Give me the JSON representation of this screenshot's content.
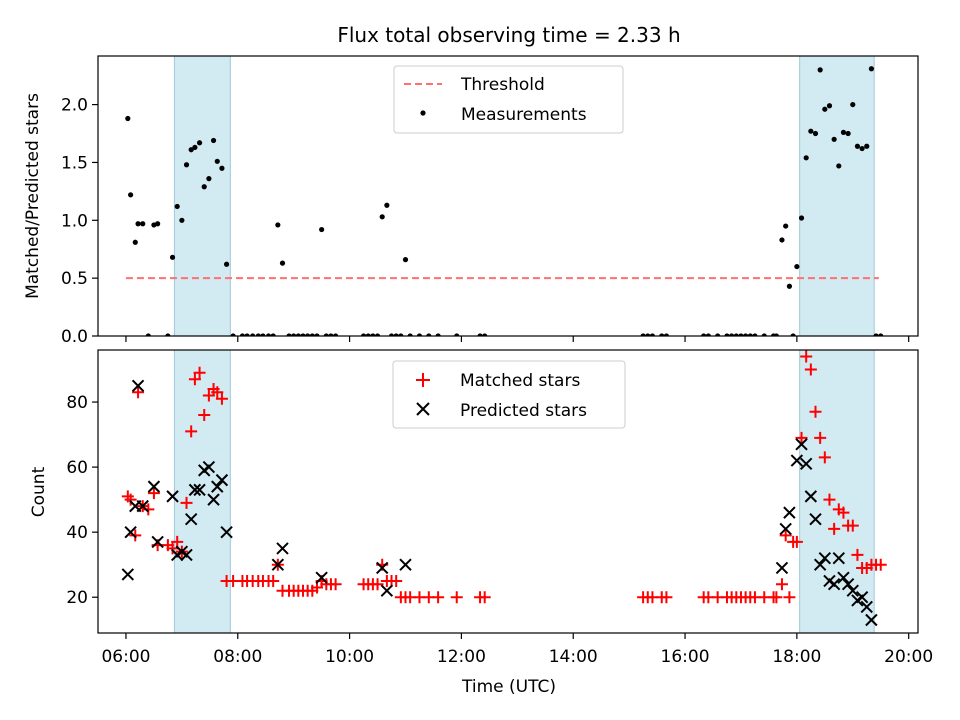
{
  "chart_data": [
    {
      "type": "scatter",
      "title": "Flux total observing time = 2.33 h",
      "ylabel": "Matched/Predicted stars",
      "xlabel": "",
      "xlim": [
        "05:30",
        "20:10"
      ],
      "ylim": [
        0,
        2.42
      ],
      "yticks": [
        "0.0",
        "0.5",
        "1.0",
        "1.5",
        "2.0"
      ],
      "ytick_values": [
        0,
        0.5,
        1.0,
        1.5,
        2.0
      ],
      "grid": false,
      "legend_position": "top-center",
      "colors": {
        "threshold": "#ff7070",
        "measurements": "#000000",
        "shade": "#add8e6"
      },
      "shaded_spans": [
        [
          "06:52",
          "07:52"
        ],
        [
          "18:03",
          "19:23"
        ]
      ],
      "threshold": {
        "name": "Threshold",
        "y": 0.5,
        "x_range": [
          "06:00",
          "19:28"
        ]
      },
      "series": [
        {
          "name": "Measurements",
          "points": [
            [
              "06:02",
              1.88
            ],
            [
              "06:05",
              1.22
            ],
            [
              "06:10",
              0.81
            ],
            [
              "06:13",
              0.97
            ],
            [
              "06:18",
              0.97
            ],
            [
              "06:24",
              0.0
            ],
            [
              "06:30",
              0.96
            ],
            [
              "06:34",
              0.97
            ],
            [
              "06:45",
              0.0
            ],
            [
              "06:50",
              0.68
            ],
            [
              "06:55",
              1.12
            ],
            [
              "07:00",
              1.0
            ],
            [
              "07:05",
              1.48
            ],
            [
              "07:10",
              1.61
            ],
            [
              "07:14",
              1.63
            ],
            [
              "07:19",
              1.67
            ],
            [
              "07:24",
              1.29
            ],
            [
              "07:29",
              1.36
            ],
            [
              "07:34",
              1.69
            ],
            [
              "07:38",
              1.51
            ],
            [
              "07:43",
              1.45
            ],
            [
              "07:48",
              0.62
            ],
            [
              "07:55",
              0.0
            ],
            [
              "08:05",
              0.0
            ],
            [
              "08:10",
              0.0
            ],
            [
              "08:16",
              0.0
            ],
            [
              "08:22",
              0.0
            ],
            [
              "08:27",
              0.0
            ],
            [
              "08:33",
              0.0
            ],
            [
              "08:38",
              0.0
            ],
            [
              "08:43",
              0.96
            ],
            [
              "08:48",
              0.63
            ],
            [
              "08:55",
              0.0
            ],
            [
              "09:00",
              0.0
            ],
            [
              "09:05",
              0.0
            ],
            [
              "09:10",
              0.0
            ],
            [
              "09:15",
              0.0
            ],
            [
              "09:20",
              0.0
            ],
            [
              "09:25",
              0.0
            ],
            [
              "09:30",
              0.92
            ],
            [
              "09:35",
              0.0
            ],
            [
              "09:40",
              0.0
            ],
            [
              "09:45",
              0.0
            ],
            [
              "10:15",
              0.0
            ],
            [
              "10:20",
              0.0
            ],
            [
              "10:25",
              0.0
            ],
            [
              "10:30",
              0.0
            ],
            [
              "10:35",
              1.03
            ],
            [
              "10:40",
              1.13
            ],
            [
              "10:45",
              0.0
            ],
            [
              "10:50",
              0.0
            ],
            [
              "10:55",
              0.0
            ],
            [
              "11:00",
              0.66
            ],
            [
              "11:05",
              0.0
            ],
            [
              "11:15",
              0.0
            ],
            [
              "11:25",
              0.0
            ],
            [
              "11:35",
              0.0
            ],
            [
              "11:55",
              0.0
            ],
            [
              "12:20",
              0.0
            ],
            [
              "12:25",
              0.0
            ],
            [
              "15:15",
              0.0
            ],
            [
              "15:20",
              0.0
            ],
            [
              "15:25",
              0.0
            ],
            [
              "15:35",
              0.0
            ],
            [
              "15:40",
              0.0
            ],
            [
              "16:20",
              0.0
            ],
            [
              "16:25",
              0.0
            ],
            [
              "16:35",
              0.0
            ],
            [
              "16:45",
              0.0
            ],
            [
              "16:50",
              0.0
            ],
            [
              "16:55",
              0.0
            ],
            [
              "17:00",
              0.0
            ],
            [
              "17:05",
              0.0
            ],
            [
              "17:10",
              0.0
            ],
            [
              "17:15",
              0.0
            ],
            [
              "17:25",
              0.0
            ],
            [
              "17:35",
              0.0
            ],
            [
              "17:38",
              0.0
            ],
            [
              "17:44",
              0.83
            ],
            [
              "17:48",
              0.95
            ],
            [
              "17:52",
              0.43
            ],
            [
              "17:56",
              0.0
            ],
            [
              "18:00",
              0.6
            ],
            [
              "18:05",
              1.02
            ],
            [
              "18:10",
              1.54
            ],
            [
              "18:15",
              1.77
            ],
            [
              "18:20",
              1.75
            ],
            [
              "18:25",
              2.3
            ],
            [
              "18:30",
              1.96
            ],
            [
              "18:35",
              1.99
            ],
            [
              "18:40",
              1.7
            ],
            [
              "18:45",
              1.47
            ],
            [
              "18:50",
              1.76
            ],
            [
              "18:55",
              1.75
            ],
            [
              "19:00",
              2.0
            ],
            [
              "19:05",
              1.64
            ],
            [
              "19:10",
              1.62
            ],
            [
              "19:15",
              1.64
            ],
            [
              "19:20",
              2.31
            ],
            [
              "19:25",
              0.0
            ],
            [
              "19:30",
              0.0
            ]
          ]
        }
      ]
    },
    {
      "type": "scatter",
      "title": "",
      "ylabel": "Count",
      "xlabel": "Time (UTC)",
      "xlim": [
        "05:30",
        "20:10"
      ],
      "ylim": [
        9,
        96
      ],
      "yticks": [
        "20",
        "40",
        "60",
        "80"
      ],
      "ytick_values": [
        20,
        40,
        60,
        80
      ],
      "xticks": [
        "06:00",
        "08:00",
        "10:00",
        "12:00",
        "14:00",
        "16:00",
        "18:00",
        "20:00"
      ],
      "grid": false,
      "legend_position": "top-center",
      "colors": {
        "matched": "#ff0000",
        "predicted": "#000000",
        "shade": "#add8e6"
      },
      "shaded_spans": [
        [
          "06:52",
          "07:52"
        ],
        [
          "18:03",
          "19:23"
        ]
      ],
      "series": [
        {
          "name": "Matched stars",
          "marker": "plus",
          "points": [
            [
              "06:02",
              51
            ],
            [
              "06:05",
              50
            ],
            [
              "06:10",
              39
            ],
            [
              "06:13",
              83
            ],
            [
              "06:18",
              48
            ],
            [
              "06:24",
              47
            ],
            [
              "06:30",
              52
            ],
            [
              "06:34",
              36
            ],
            [
              "06:45",
              36
            ],
            [
              "06:50",
              35
            ],
            [
              "06:55",
              37
            ],
            [
              "07:00",
              34
            ],
            [
              "07:05",
              49
            ],
            [
              "07:10",
              71
            ],
            [
              "07:14",
              87
            ],
            [
              "07:19",
              89
            ],
            [
              "07:24",
              76
            ],
            [
              "07:29",
              82
            ],
            [
              "07:34",
              84
            ],
            [
              "07:38",
              83
            ],
            [
              "07:43",
              81
            ],
            [
              "07:48",
              25
            ],
            [
              "07:55",
              25
            ],
            [
              "08:05",
              25
            ],
            [
              "08:10",
              25
            ],
            [
              "08:16",
              25
            ],
            [
              "08:22",
              25
            ],
            [
              "08:27",
              25
            ],
            [
              "08:33",
              25
            ],
            [
              "08:38",
              25
            ],
            [
              "08:43",
              30
            ],
            [
              "08:48",
              22
            ],
            [
              "08:55",
              22
            ],
            [
              "09:00",
              22
            ],
            [
              "09:05",
              22
            ],
            [
              "09:10",
              22
            ],
            [
              "09:15",
              22
            ],
            [
              "09:20",
              22
            ],
            [
              "09:25",
              23
            ],
            [
              "09:30",
              25
            ],
            [
              "09:35",
              24
            ],
            [
              "09:40",
              24
            ],
            [
              "09:45",
              24
            ],
            [
              "10:15",
              24
            ],
            [
              "10:20",
              24
            ],
            [
              "10:25",
              24
            ],
            [
              "10:30",
              24
            ],
            [
              "10:35",
              30
            ],
            [
              "10:40",
              25
            ],
            [
              "10:45",
              25
            ],
            [
              "10:50",
              25
            ],
            [
              "10:55",
              20
            ],
            [
              "11:00",
              20
            ],
            [
              "11:05",
              20
            ],
            [
              "11:15",
              20
            ],
            [
              "11:25",
              20
            ],
            [
              "11:35",
              20
            ],
            [
              "11:55",
              20
            ],
            [
              "12:20",
              20
            ],
            [
              "12:25",
              20
            ],
            [
              "15:15",
              20
            ],
            [
              "15:20",
              20
            ],
            [
              "15:25",
              20
            ],
            [
              "15:35",
              20
            ],
            [
              "15:40",
              20
            ],
            [
              "16:20",
              20
            ],
            [
              "16:25",
              20
            ],
            [
              "16:35",
              20
            ],
            [
              "16:45",
              20
            ],
            [
              "16:50",
              20
            ],
            [
              "16:55",
              20
            ],
            [
              "17:00",
              20
            ],
            [
              "17:05",
              20
            ],
            [
              "17:10",
              20
            ],
            [
              "17:15",
              20
            ],
            [
              "17:25",
              20
            ],
            [
              "17:35",
              20
            ],
            [
              "17:38",
              20
            ],
            [
              "17:44",
              24
            ],
            [
              "17:48",
              39
            ],
            [
              "17:52",
              20
            ],
            [
              "17:56",
              37
            ],
            [
              "18:00",
              37
            ],
            [
              "18:05",
              69
            ],
            [
              "18:10",
              94
            ],
            [
              "18:15",
              90
            ],
            [
              "18:20",
              77
            ],
            [
              "18:25",
              69
            ],
            [
              "18:30",
              63
            ],
            [
              "18:35",
              50
            ],
            [
              "18:40",
              41
            ],
            [
              "18:45",
              47
            ],
            [
              "18:50",
              46
            ],
            [
              "18:55",
              42
            ],
            [
              "19:00",
              42
            ],
            [
              "19:05",
              33
            ],
            [
              "19:10",
              29
            ],
            [
              "19:15",
              29
            ],
            [
              "19:20",
              30
            ],
            [
              "19:25",
              30
            ],
            [
              "19:30",
              30
            ]
          ]
        },
        {
          "name": "Predicted stars",
          "marker": "x",
          "points": [
            [
              "06:02",
              27
            ],
            [
              "06:05",
              40
            ],
            [
              "06:10",
              48
            ],
            [
              "06:13",
              85
            ],
            [
              "06:18",
              48
            ],
            [
              "06:30",
              54
            ],
            [
              "06:34",
              37
            ],
            [
              "06:50",
              51
            ],
            [
              "06:55",
              33
            ],
            [
              "07:00",
              34
            ],
            [
              "07:05",
              33
            ],
            [
              "07:10",
              44
            ],
            [
              "07:14",
              53
            ],
            [
              "07:19",
              53
            ],
            [
              "07:24",
              59
            ],
            [
              "07:29",
              60
            ],
            [
              "07:34",
              50
            ],
            [
              "07:38",
              54
            ],
            [
              "07:43",
              56
            ],
            [
              "07:48",
              40
            ],
            [
              "08:43",
              30
            ],
            [
              "08:48",
              35
            ],
            [
              "09:30",
              26
            ],
            [
              "10:35",
              29
            ],
            [
              "10:40",
              22
            ],
            [
              "11:00",
              30
            ],
            [
              "17:44",
              29
            ],
            [
              "17:48",
              41
            ],
            [
              "17:52",
              46
            ],
            [
              "18:00",
              62
            ],
            [
              "18:05",
              67
            ],
            [
              "18:10",
              61
            ],
            [
              "18:15",
              51
            ],
            [
              "18:20",
              44
            ],
            [
              "18:25",
              30
            ],
            [
              "18:30",
              32
            ],
            [
              "18:35",
              25
            ],
            [
              "18:40",
              24
            ],
            [
              "18:45",
              32
            ],
            [
              "18:50",
              26
            ],
            [
              "18:55",
              24
            ],
            [
              "19:00",
              22
            ],
            [
              "19:05",
              19
            ],
            [
              "19:10",
              20
            ],
            [
              "19:15",
              17
            ],
            [
              "19:20",
              13
            ]
          ]
        }
      ]
    }
  ]
}
